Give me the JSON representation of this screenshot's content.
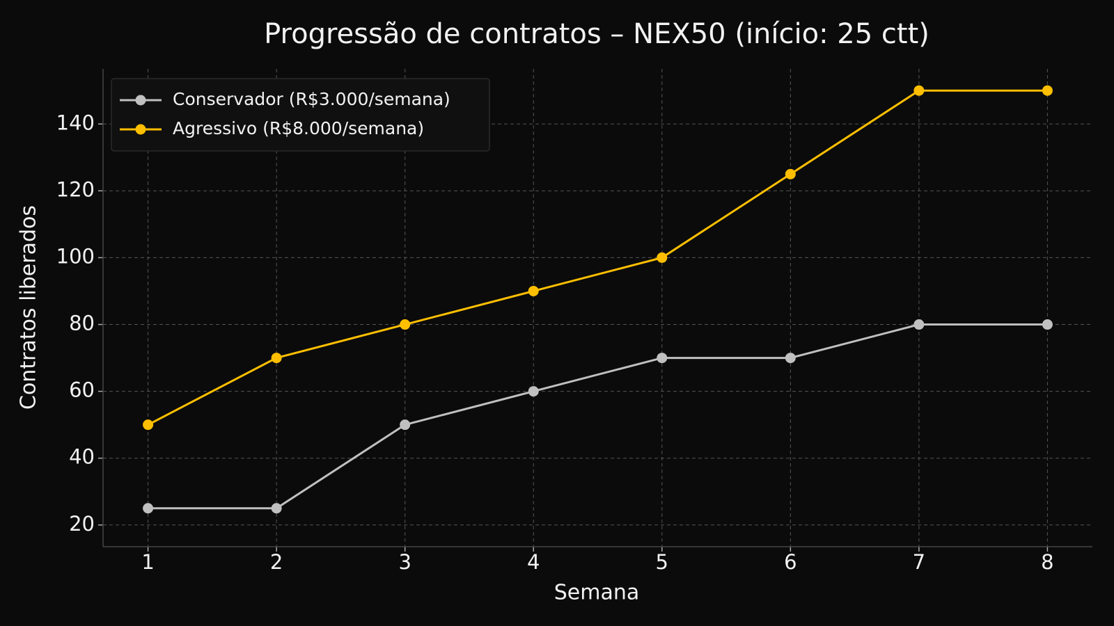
{
  "chart_data": {
    "type": "line",
    "title": "Progressão de contratos – NEX50 (início: 25 ctt)",
    "x_label": "Semana",
    "y_label": "Contratos liberados",
    "x": [
      1,
      2,
      3,
      4,
      5,
      6,
      7,
      8
    ],
    "series": [
      {
        "name": "Conservador (R$3.000/semana)",
        "color": "#c0c0c0",
        "values": [
          25,
          25,
          50,
          60,
          70,
          70,
          80,
          80
        ]
      },
      {
        "name": "Agressivo (R$8.000/semana)",
        "color": "#ffbf00",
        "values": [
          50,
          70,
          80,
          90,
          100,
          125,
          150,
          150
        ]
      }
    ],
    "xlim": [
      0.65,
      8.35
    ],
    "ylim": [
      13.5,
      156.5
    ],
    "xticks": [
      1,
      2,
      3,
      4,
      5,
      6,
      7,
      8
    ],
    "yticks": [
      20,
      40,
      60,
      80,
      100,
      120,
      140
    ],
    "grid": true,
    "legend": "upper left"
  }
}
